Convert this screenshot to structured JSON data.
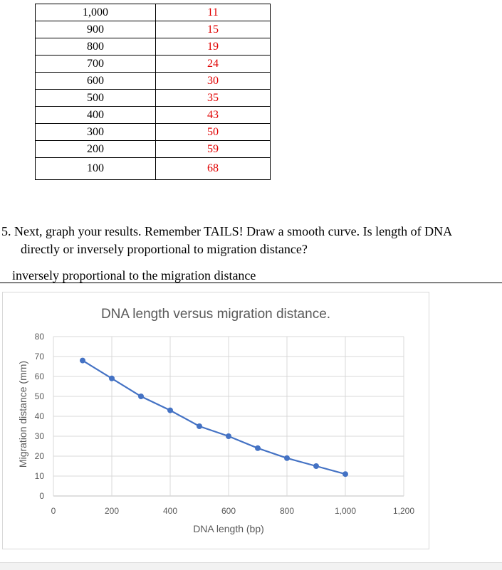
{
  "table": {
    "rows": [
      {
        "length": "1,000",
        "distance": "11"
      },
      {
        "length": "900",
        "distance": "15"
      },
      {
        "length": "800",
        "distance": "19"
      },
      {
        "length": "700",
        "distance": "24"
      },
      {
        "length": "600",
        "distance": "30"
      },
      {
        "length": "500",
        "distance": "35"
      },
      {
        "length": "400",
        "distance": "43"
      },
      {
        "length": "300",
        "distance": "50"
      },
      {
        "length": "200",
        "distance": "59"
      },
      {
        "length": "100",
        "distance": "68"
      }
    ],
    "distance_color": "#e00000"
  },
  "question": {
    "line1": "5. Next, graph your results. Remember TAILS! Draw a smooth curve. Is length of DNA",
    "line2": "directly or inversely proportional to migration distance?"
  },
  "answer": {
    "text": "inversely proportional to the migration distance"
  },
  "chart_data": {
    "type": "line",
    "title": "DNA length versus migration distance.",
    "xlabel": "DNA length (bp)",
    "ylabel": "Migration distance (mm)",
    "x": [
      100,
      200,
      300,
      400,
      500,
      600,
      700,
      800,
      900,
      1000
    ],
    "y": [
      68,
      59,
      50,
      43,
      35,
      30,
      24,
      19,
      15,
      11
    ],
    "xlim": [
      0,
      1200
    ],
    "ylim": [
      0,
      80
    ],
    "xticks": [
      "0",
      "200",
      "400",
      "600",
      "800",
      "1,000",
      "1,200"
    ],
    "yticks": [
      "0",
      "10",
      "20",
      "30",
      "40",
      "50",
      "60",
      "70",
      "80"
    ],
    "grid": true,
    "line_color": "#4472c4"
  }
}
